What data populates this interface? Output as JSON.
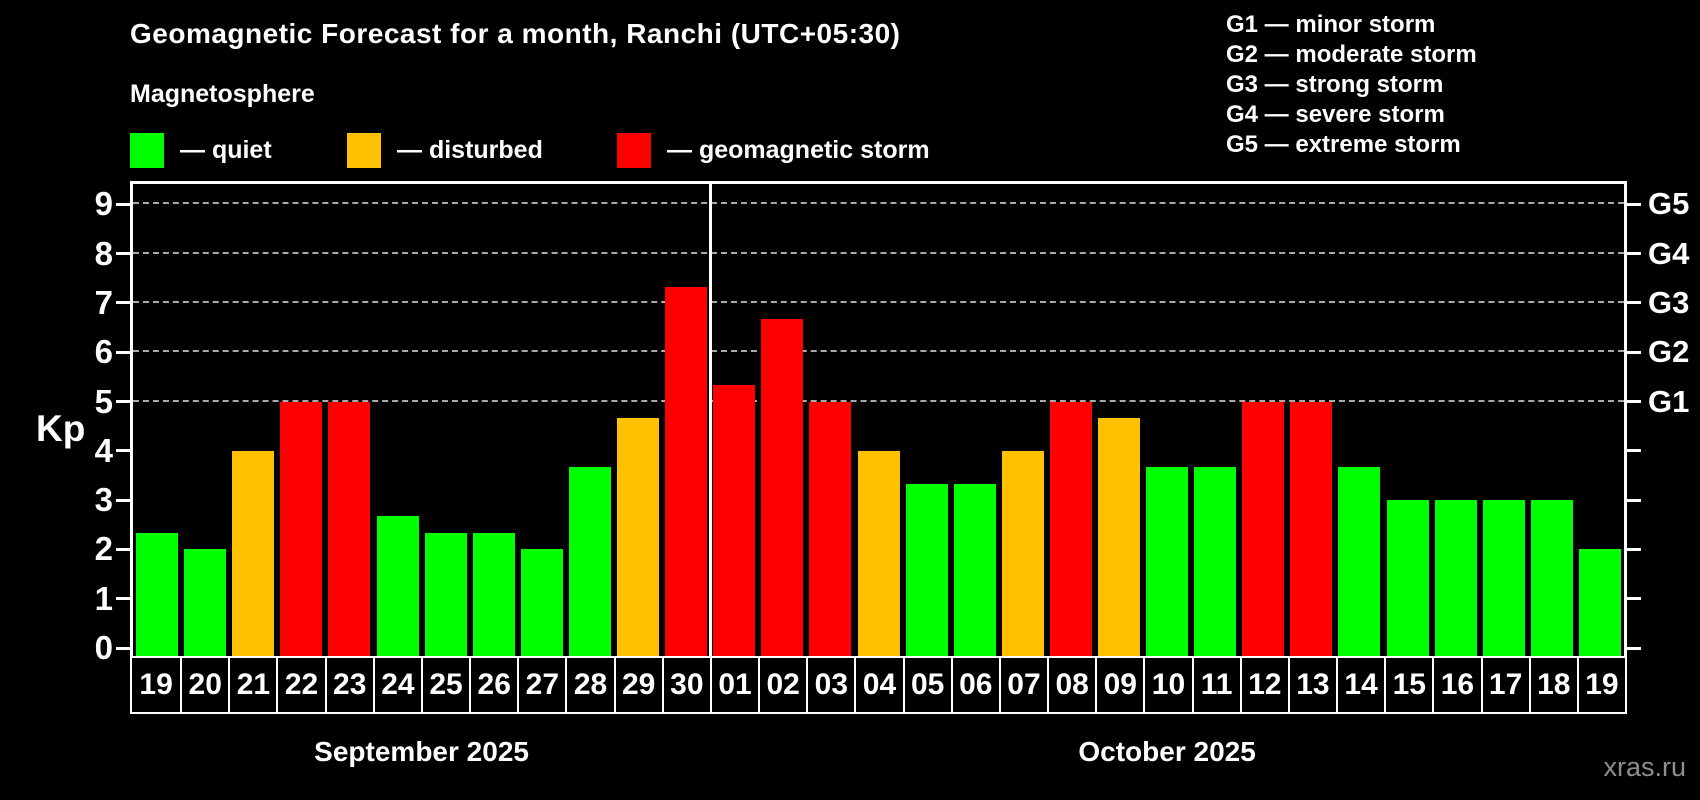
{
  "title": "Geomagnetic Forecast for a month, Ranchi (UTC+05:30)",
  "subtitle": "Magnetosphere",
  "legend": {
    "items": [
      {
        "label": "— quiet",
        "state": "quiet"
      },
      {
        "label": "— disturbed",
        "state": "disturbed"
      },
      {
        "label": "— geomagnetic storm",
        "state": "storm"
      }
    ]
  },
  "g_legend": [
    "G1 — minor storm",
    "G2 — moderate storm",
    "G3 — strong storm",
    "G4 — severe storm",
    "G5 — extreme storm"
  ],
  "colors": {
    "quiet": "#00ff00",
    "disturbed": "#ffc100",
    "storm": "#ff0000",
    "grid": "#a9a9a9",
    "axis": "#ffffff",
    "watermark": "#8e8e8e"
  },
  "watermark": "xras.ru",
  "chart_data": {
    "type": "bar",
    "title": "Geomagnetic Forecast for a month, Ranchi (UTC+05:30)",
    "xlabel": "",
    "ylabel": "Kp",
    "ylim": [
      0,
      9.45
    ],
    "yticks": [
      0,
      1,
      2,
      3,
      4,
      5,
      6,
      7,
      8,
      9
    ],
    "grid_levels": [
      5,
      6,
      7,
      8,
      9
    ],
    "grid_on": true,
    "right_ticks": [
      {
        "kp": 5,
        "label": "G1"
      },
      {
        "kp": 6,
        "label": "G2"
      },
      {
        "kp": 7,
        "label": "G3"
      },
      {
        "kp": 8,
        "label": "G4"
      },
      {
        "kp": 9,
        "label": "G5"
      }
    ],
    "months": [
      {
        "label": "September 2025",
        "days": 12
      },
      {
        "label": "October 2025",
        "days": 19
      }
    ],
    "bars": [
      {
        "day": "19",
        "kp": 2.33,
        "state": "quiet"
      },
      {
        "day": "20",
        "kp": 2.0,
        "state": "quiet"
      },
      {
        "day": "21",
        "kp": 4.0,
        "state": "disturbed"
      },
      {
        "day": "22",
        "kp": 5.0,
        "state": "storm"
      },
      {
        "day": "23",
        "kp": 5.0,
        "state": "storm"
      },
      {
        "day": "24",
        "kp": 2.67,
        "state": "quiet"
      },
      {
        "day": "25",
        "kp": 2.33,
        "state": "quiet"
      },
      {
        "day": "26",
        "kp": 2.33,
        "state": "quiet"
      },
      {
        "day": "27",
        "kp": 2.0,
        "state": "quiet"
      },
      {
        "day": "28",
        "kp": 3.67,
        "state": "quiet"
      },
      {
        "day": "29",
        "kp": 4.67,
        "state": "disturbed"
      },
      {
        "day": "30",
        "kp": 7.33,
        "state": "storm"
      },
      {
        "day": "01",
        "kp": 5.33,
        "state": "storm"
      },
      {
        "day": "02",
        "kp": 6.67,
        "state": "storm"
      },
      {
        "day": "03",
        "kp": 5.0,
        "state": "storm"
      },
      {
        "day": "04",
        "kp": 4.0,
        "state": "disturbed"
      },
      {
        "day": "05",
        "kp": 3.33,
        "state": "quiet"
      },
      {
        "day": "06",
        "kp": 3.33,
        "state": "quiet"
      },
      {
        "day": "07",
        "kp": 4.0,
        "state": "disturbed"
      },
      {
        "day": "08",
        "kp": 5.0,
        "state": "storm"
      },
      {
        "day": "09",
        "kp": 4.67,
        "state": "disturbed"
      },
      {
        "day": "10",
        "kp": 3.67,
        "state": "quiet"
      },
      {
        "day": "11",
        "kp": 3.67,
        "state": "quiet"
      },
      {
        "day": "12",
        "kp": 5.0,
        "state": "storm"
      },
      {
        "day": "13",
        "kp": 5.0,
        "state": "storm"
      },
      {
        "day": "14",
        "kp": 3.67,
        "state": "quiet"
      },
      {
        "day": "15",
        "kp": 3.0,
        "state": "quiet"
      },
      {
        "day": "16",
        "kp": 3.0,
        "state": "quiet"
      },
      {
        "day": "17",
        "kp": 3.0,
        "state": "quiet"
      },
      {
        "day": "18",
        "kp": 3.0,
        "state": "quiet"
      },
      {
        "day": "19",
        "kp": 2.0,
        "state": "quiet"
      }
    ]
  }
}
